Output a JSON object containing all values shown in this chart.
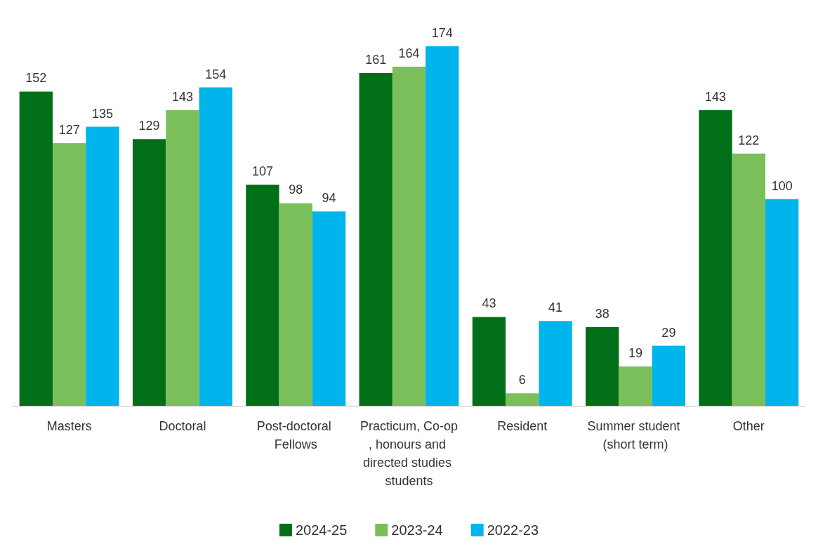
{
  "chart_data": {
    "type": "bar",
    "categories": [
      "Masters",
      "Doctoral",
      "Post-doctoral Fellows",
      "Practicum, Co-op, honours and directed studies students",
      "Resident",
      "Summer student (short term)",
      "Other"
    ],
    "series": [
      {
        "name": "2024-25",
        "color": "#006f17",
        "values": [
          152,
          129,
          107,
          161,
          43,
          38,
          143
        ]
      },
      {
        "name": "2023-24",
        "color": "#7bbf5b",
        "values": [
          127,
          143,
          98,
          164,
          6,
          19,
          122
        ]
      },
      {
        "name": "2022-23",
        "color": "#00b5ec",
        "values": [
          135,
          154,
          94,
          174,
          41,
          29,
          100
        ]
      }
    ],
    "data_labels": true,
    "legend": "bottom",
    "grid": false
  }
}
